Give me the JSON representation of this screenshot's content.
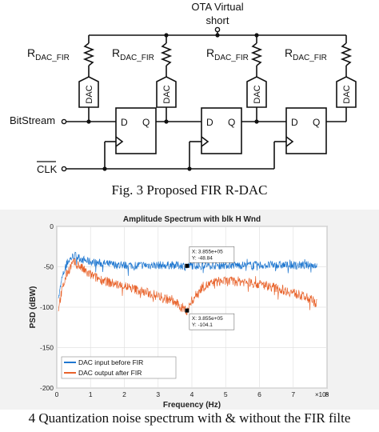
{
  "circuit": {
    "ota_label_line1": "OTA Virtual",
    "ota_label_line2": "short",
    "r_main": "R",
    "r_sub": "DAC_FIR",
    "dac_label": "DAC",
    "bitstream_label": "BitStream",
    "clk_label": "CLK",
    "ff_d": "D",
    "ff_q": "Q",
    "stage_count": 4,
    "ff_count": 3
  },
  "caption1": "Fig. 3 Proposed FIR R-DAC",
  "caption2": "4 Quantization noise spectrum with & without the FIR filte",
  "chart_data": {
    "type": "line",
    "title": "Amplitude Spectrum with blk H Wnd",
    "xlabel": "Frequency (Hz)",
    "ylabel": "PSD (dBW)",
    "x_exponent": "×10⁵",
    "xlim": [
      0,
      8
    ],
    "ylim": [
      -200,
      0
    ],
    "xticks": [
      0,
      1,
      2,
      3,
      4,
      5,
      6,
      7,
      8
    ],
    "yticks": [
      0,
      -50,
      -100,
      -150,
      -200
    ],
    "grid": true,
    "legend_position": "bottom-left",
    "series": [
      {
        "name": "DAC input before FIR",
        "color": "#1f77d0",
        "x": [
          0.05,
          0.15,
          0.3,
          0.45,
          0.55,
          0.7,
          0.9,
          1.2,
          1.6,
          2.0,
          2.5,
          3.0,
          3.5,
          3.855,
          4.2,
          4.8,
          5.5,
          6.2,
          7.0,
          7.7
        ],
        "values": [
          -90,
          -65,
          -45,
          -38,
          -36,
          -40,
          -43,
          -45,
          -47,
          -48,
          -48,
          -48,
          -48,
          -48.84,
          -48,
          -48,
          -48,
          -48,
          -48,
          -48
        ]
      },
      {
        "name": "DAC output after FIR",
        "color": "#e8622a",
        "x": [
          0.05,
          0.15,
          0.3,
          0.45,
          0.55,
          0.7,
          0.9,
          1.2,
          1.6,
          2.0,
          2.5,
          3.0,
          3.4,
          3.7,
          3.855,
          4.0,
          4.3,
          4.8,
          5.5,
          6.2,
          7.0,
          7.5,
          7.7
        ],
        "values": [
          -100,
          -80,
          -58,
          -47,
          -45,
          -50,
          -58,
          -64,
          -70,
          -74,
          -80,
          -86,
          -92,
          -100,
          -104.1,
          -92,
          -75,
          -68,
          -68,
          -73,
          -82,
          -90,
          -95
        ]
      }
    ],
    "datatips": [
      {
        "x": 3.855,
        "y": -48.84,
        "x_text": "X: 3.855e+05",
        "y_text": "Y: -48.84"
      },
      {
        "x": 3.855,
        "y": -104.1,
        "x_text": "X: 3.855e+05",
        "y_text": "Y: -104.1"
      }
    ]
  }
}
